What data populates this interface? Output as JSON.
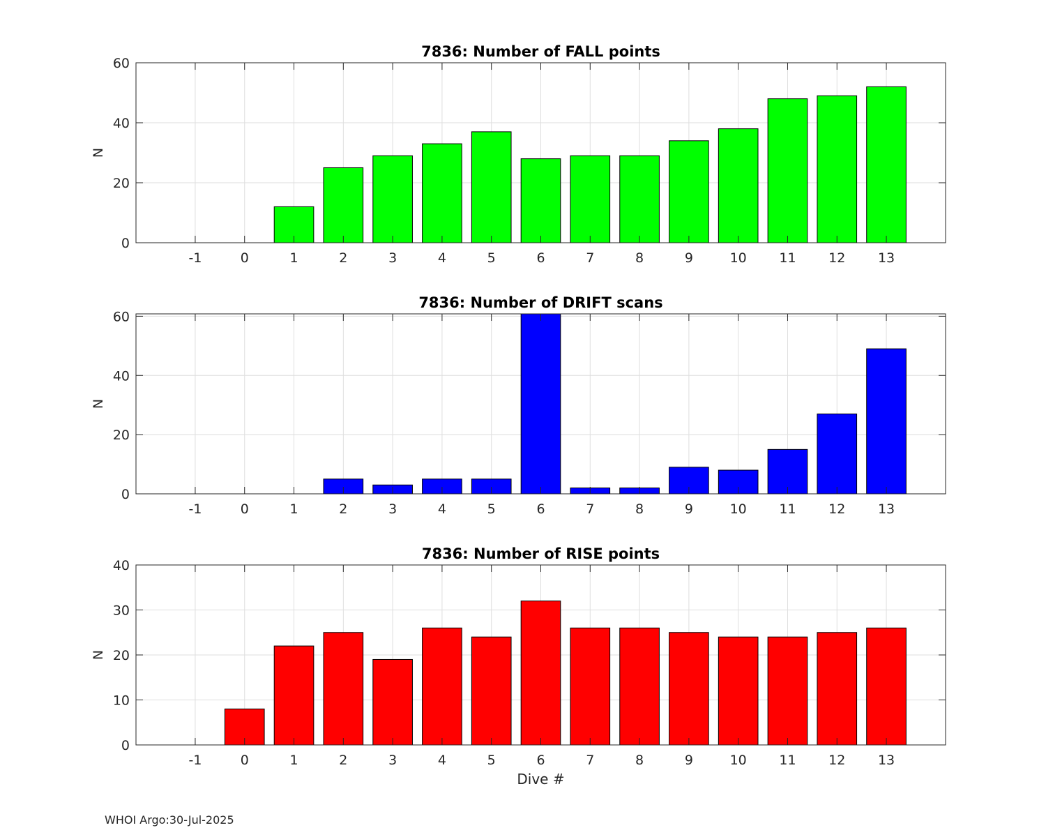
{
  "chart_data": [
    {
      "type": "bar",
      "title": "7836: Number of FALL points",
      "xlabel": "",
      "ylabel": "N",
      "color": "#00ff00",
      "categories": [
        "-1",
        "0",
        "1",
        "2",
        "3",
        "4",
        "5",
        "6",
        "7",
        "8",
        "9",
        "10",
        "11",
        "12",
        "13"
      ],
      "x": [
        -1,
        0,
        1,
        2,
        3,
        4,
        5,
        6,
        7,
        8,
        9,
        10,
        11,
        12,
        13
      ],
      "values": [
        0,
        0,
        12,
        25,
        29,
        33,
        37,
        28,
        29,
        29,
        34,
        38,
        48,
        49,
        52
      ],
      "xlim": [
        -2.2,
        14.2
      ],
      "ylim": [
        0,
        60
      ],
      "yticks": [
        0,
        20,
        40,
        60
      ],
      "grid": true
    },
    {
      "type": "bar",
      "title": "7836: Number of DRIFT scans",
      "xlabel": "",
      "ylabel": "N",
      "color": "#0000ff",
      "categories": [
        "-1",
        "0",
        "1",
        "2",
        "3",
        "4",
        "5",
        "6",
        "7",
        "8",
        "9",
        "10",
        "11",
        "12",
        "13"
      ],
      "x": [
        -1,
        0,
        1,
        2,
        3,
        4,
        5,
        6,
        7,
        8,
        9,
        10,
        11,
        12,
        13
      ],
      "values": [
        0,
        0,
        0,
        5,
        3,
        5,
        5,
        61,
        2,
        2,
        9,
        8,
        15,
        27,
        49
      ],
      "xlim": [
        -2.2,
        14.2
      ],
      "ylim": [
        0,
        60.8
      ],
      "yticks": [
        0,
        20,
        40,
        60
      ],
      "grid": true
    },
    {
      "type": "bar",
      "title": "7836: Number of RISE points",
      "xlabel": "Dive #",
      "ylabel": "N",
      "color": "#ff0000",
      "categories": [
        "-1",
        "0",
        "1",
        "2",
        "3",
        "4",
        "5",
        "6",
        "7",
        "8",
        "9",
        "10",
        "11",
        "12",
        "13"
      ],
      "x": [
        -1,
        0,
        1,
        2,
        3,
        4,
        5,
        6,
        7,
        8,
        9,
        10,
        11,
        12,
        13
      ],
      "values": [
        0,
        8,
        22,
        25,
        19,
        26,
        24,
        32,
        26,
        26,
        25,
        24,
        24,
        25,
        26
      ],
      "xlim": [
        -2.2,
        14.2
      ],
      "ylim": [
        0,
        40
      ],
      "yticks": [
        0,
        10,
        20,
        30,
        40
      ],
      "grid": true
    }
  ],
  "footer": "WHOI Argo:30-Jul-2025"
}
